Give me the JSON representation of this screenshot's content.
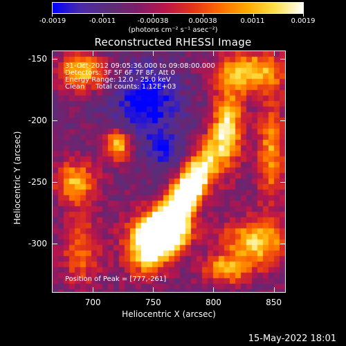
{
  "colorbar": {
    "ticks": [
      "-0.0019",
      "-0.0011",
      "-0.00038",
      "0.00038",
      "0.0011",
      "0.0019"
    ],
    "units": "(photons cm⁻² s⁻¹ asec⁻²)",
    "colormap": [
      "#0000ff",
      "#4b2aa8",
      "#5a2d78",
      "#7a1e6a",
      "#b8154c",
      "#e0321a",
      "#ff6a00",
      "#ffaa00",
      "#ffe14a",
      "#ffffff"
    ]
  },
  "image_info": {
    "lines": [
      "31-Oct-2012 09:05:36.000 to 09:08:00.000",
      "Detectors: 3F 5F 6F 7F 8F, Att 0",
      "Energy Range: 12.0 - 25.0 keV",
      "Clean     Total counts: 1.12E+03"
    ],
    "peak": "Position of Peak = [777,-261]"
  },
  "timestamp": "15-May-2022 18:01",
  "chart_data": {
    "type": "heatmap",
    "title": "Reconstructed RHESSI Image",
    "xlabel": "Heliocentric X (arcsec)",
    "ylabel": "Heliocentric Y (arcsec)",
    "xlim": [
      666,
      860
    ],
    "ylim": [
      -340,
      -143
    ],
    "xticks": [
      "700",
      "750",
      "800",
      "850"
    ],
    "yticks": [
      "-150",
      "-200",
      "-250",
      "-300"
    ],
    "xtick_values": [
      700,
      750,
      800,
      850
    ],
    "ytick_values": [
      -150,
      -200,
      -250,
      -300
    ],
    "value_range": [
      -0.0019,
      0.0019
    ],
    "peak": [
      777,
      -261
    ],
    "sources": [
      {
        "x": 777,
        "y": -261,
        "sx": 9,
        "sy": 34,
        "rot": 0.55,
        "amp": 1.0
      },
      {
        "x": 762,
        "y": -290,
        "sx": 13,
        "sy": 12,
        "rot": 0,
        "amp": 0.75
      },
      {
        "x": 745,
        "y": -300,
        "sx": 14,
        "sy": 16,
        "rot": 0,
        "amp": 0.6
      },
      {
        "x": 690,
        "y": -160,
        "sx": 14,
        "sy": 10,
        "rot": 0,
        "amp": 0.55
      },
      {
        "x": 832,
        "y": -160,
        "sx": 20,
        "sy": 12,
        "rot": 0,
        "amp": 0.55
      },
      {
        "x": 812,
        "y": -205,
        "sx": 9,
        "sy": 25,
        "rot": 0,
        "amp": 0.5
      },
      {
        "x": 848,
        "y": -225,
        "sx": 8,
        "sy": 30,
        "rot": 0,
        "amp": 0.45
      },
      {
        "x": 720,
        "y": -220,
        "sx": 8,
        "sy": 9,
        "rot": 0,
        "amp": 0.55
      },
      {
        "x": 685,
        "y": -250,
        "sx": 12,
        "sy": 12,
        "rot": 0,
        "amp": 0.5
      },
      {
        "x": 690,
        "y": -305,
        "sx": 12,
        "sy": 22,
        "rot": 0,
        "amp": 0.35
      },
      {
        "x": 835,
        "y": -300,
        "sx": 20,
        "sy": 14,
        "rot": 0,
        "amp": 0.55
      },
      {
        "x": 810,
        "y": -322,
        "sx": 14,
        "sy": 8,
        "rot": 0,
        "amp": 0.45
      }
    ],
    "negative_regions": [
      {
        "x": 745,
        "y": -185,
        "sx": 18,
        "sy": 20,
        "amp": 0.35
      },
      {
        "x": 760,
        "y": -225,
        "sx": 10,
        "sy": 10,
        "amp": 0.25
      }
    ]
  }
}
